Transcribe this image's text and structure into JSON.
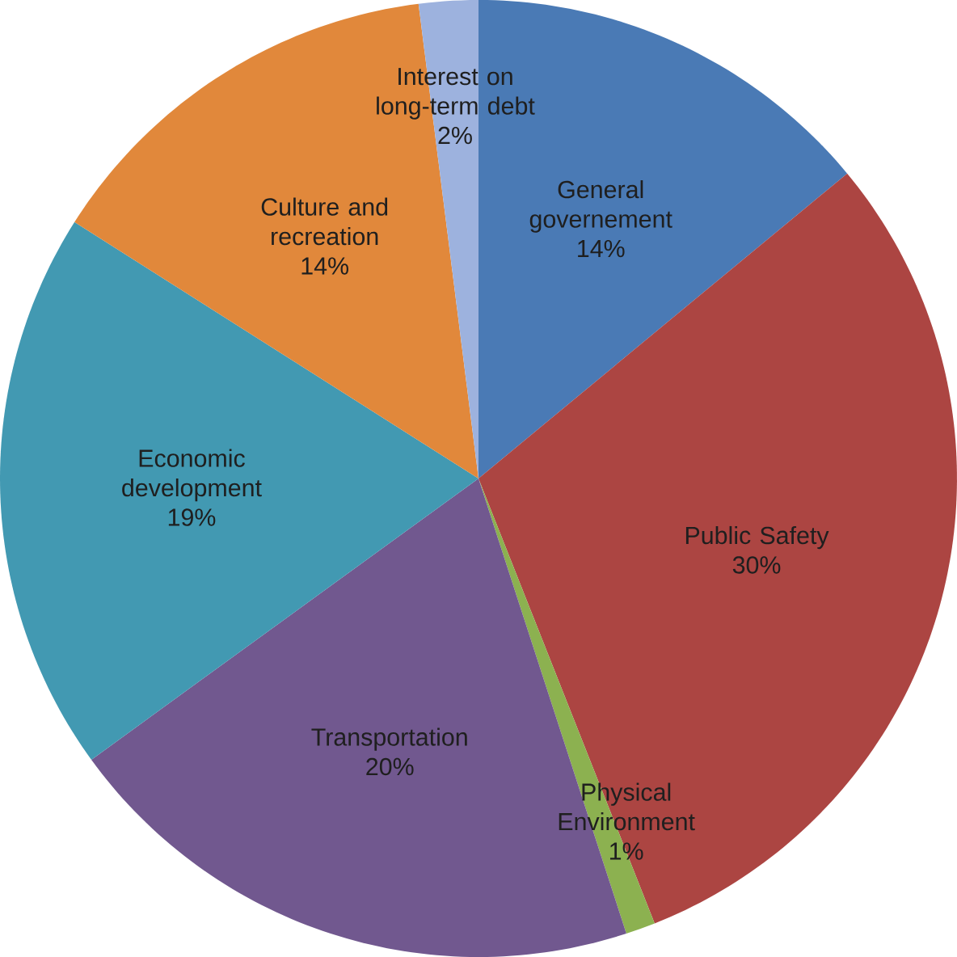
{
  "chart_data": {
    "type": "pie",
    "categories": [
      "General governement",
      "Public Safety",
      "Physical Environment",
      "Transportation",
      "Economic development",
      "Culture and recreation",
      "Interest on long-term debt"
    ],
    "values": [
      14,
      30,
      1,
      20,
      19,
      14,
      2
    ],
    "value_labels": [
      "14%",
      "30%",
      "1%",
      "20%",
      "19%",
      "14%",
      "2%"
    ],
    "colors": [
      "#4a7ab5",
      "#ac4542",
      "#8cb150",
      "#71588f",
      "#4299b2",
      "#e1883b",
      "#9db2de"
    ]
  }
}
